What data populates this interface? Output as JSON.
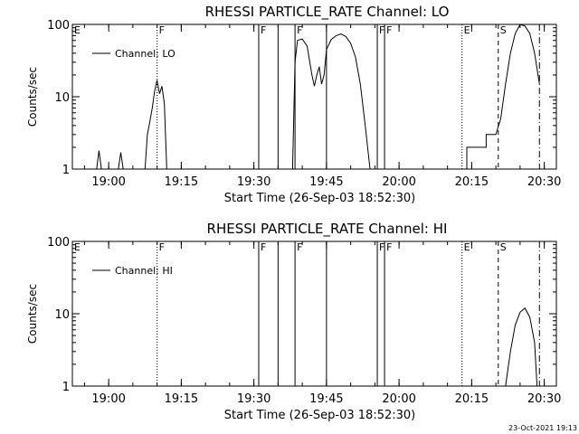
{
  "footer": {
    "timestamp": "23-Oct-2021 19:13"
  },
  "chart_data": [
    {
      "type": "line",
      "title": "RHESSI PARTICLE_RATE Channel: LO",
      "xlabel": "Start Time (26-Sep-03 18:52:30)",
      "ylabel": "Counts/sec",
      "y_scale": "log",
      "ylim": [
        1,
        100
      ],
      "xlim": [
        "18:52:30",
        "20:32:30"
      ],
      "x_ticks": [
        "19:00",
        "19:15",
        "19:30",
        "19:45",
        "20:00",
        "20:15",
        "20:30"
      ],
      "y_ticks": [
        "1",
        "10",
        "100"
      ],
      "legend": {
        "label": "Channel: LO",
        "placement": "top-left"
      },
      "markers": [
        {
          "time": "18:52:30",
          "label": "E",
          "style": "dotted"
        },
        {
          "time": "19:10:00",
          "label": "F",
          "style": "dotted"
        },
        {
          "time": "19:31:00",
          "label": "F",
          "style": "solid"
        },
        {
          "time": "19:35:00",
          "label": "",
          "style": "solid"
        },
        {
          "time": "19:38:30",
          "label": "F",
          "style": "solid"
        },
        {
          "time": "19:45:00",
          "label": "",
          "style": "solid"
        },
        {
          "time": "19:55:30",
          "label": "F",
          "style": "solid"
        },
        {
          "time": "19:57:00",
          "label": "F",
          "style": "solid"
        },
        {
          "time": "20:13:00",
          "label": "E",
          "style": "dotted"
        },
        {
          "time": "20:20:30",
          "label": "S",
          "style": "dashed"
        },
        {
          "time": "20:29:00",
          "label": "",
          "style": "dashdot"
        }
      ],
      "series": [
        {
          "name": "Channel: LO",
          "segments": [
            {
              "x": [
                "18:57:30",
                "18:58:00",
                "18:58:30"
              ],
              "y": [
                1,
                1.8,
                1
              ]
            },
            {
              "x": [
                "19:02:00",
                "19:02:30",
                "19:03:00"
              ],
              "y": [
                1,
                1.7,
                1
              ]
            },
            {
              "x": [
                "19:07:30",
                "19:08:00",
                "19:08:30",
                "19:09:00",
                "19:09:30",
                "19:10:00",
                "19:10:30",
                "19:11:00",
                "19:11:30",
                "19:12:00"
              ],
              "y": [
                1,
                3,
                4.5,
                7,
                12,
                17,
                11,
                14,
                8,
                1
              ]
            },
            {
              "x": [
                "19:38:00",
                "19:38:30",
                "19:39:00",
                "19:40:00",
                "19:41:00",
                "19:42:00",
                "19:42:30",
                "19:43:00",
                "19:43:30",
                "19:44:00",
                "19:44:30",
                "19:45:00",
                "19:46:00",
                "19:47:00",
                "19:48:00",
                "19:49:00",
                "19:50:00",
                "19:51:00",
                "19:52:00",
                "19:53:00",
                "19:54:00"
              ],
              "y": [
                1,
                30,
                60,
                63,
                50,
                20,
                14,
                20,
                26,
                15,
                20,
                45,
                62,
                70,
                74,
                68,
                55,
                35,
                15,
                4,
                1
              ]
            },
            {
              "x": [
                "20:13:00",
                "20:14:00",
                "20:14:00",
                "20:18:00",
                "20:18:00",
                "20:20:00",
                "20:21:00",
                "20:22:00",
                "20:23:00",
                "20:24:00",
                "20:25:00",
                "20:26:00",
                "20:27:00",
                "20:28:00",
                "20:29:00"
              ],
              "y": [
                1,
                1,
                2,
                2,
                3,
                3,
                5,
                15,
                40,
                75,
                100,
                95,
                75,
                40,
                15
              ]
            }
          ]
        }
      ]
    },
    {
      "type": "line",
      "title": "RHESSI PARTICLE_RATE Channel: HI",
      "xlabel": "Start Time (26-Sep-03 18:52:30)",
      "ylabel": "Counts/sec",
      "y_scale": "log",
      "ylim": [
        1,
        100
      ],
      "xlim": [
        "18:52:30",
        "20:32:30"
      ],
      "x_ticks": [
        "19:00",
        "19:15",
        "19:30",
        "19:45",
        "20:00",
        "20:15",
        "20:30"
      ],
      "y_ticks": [
        "1",
        "10",
        "100"
      ],
      "legend": {
        "label": "Channel: HI",
        "placement": "top-left"
      },
      "markers": [
        {
          "time": "18:52:30",
          "label": "E",
          "style": "dotted"
        },
        {
          "time": "19:10:00",
          "label": "F",
          "style": "dotted"
        },
        {
          "time": "19:31:00",
          "label": "F",
          "style": "solid"
        },
        {
          "time": "19:35:00",
          "label": "",
          "style": "solid"
        },
        {
          "time": "19:38:30",
          "label": "F",
          "style": "solid"
        },
        {
          "time": "19:45:00",
          "label": "",
          "style": "solid"
        },
        {
          "time": "19:55:30",
          "label": "F",
          "style": "solid"
        },
        {
          "time": "19:57:00",
          "label": "F",
          "style": "solid"
        },
        {
          "time": "20:13:00",
          "label": "E",
          "style": "dotted"
        },
        {
          "time": "20:20:30",
          "label": "S",
          "style": "dashed"
        },
        {
          "time": "20:29:00",
          "label": "",
          "style": "dashdot"
        }
      ],
      "series": [
        {
          "name": "Channel: HI",
          "segments": [
            {
              "x": [
                "20:22:00",
                "20:23:00",
                "20:24:00",
                "20:25:00",
                "20:26:00",
                "20:27:00",
                "20:28:00",
                "20:28:30"
              ],
              "y": [
                1,
                3,
                7,
                10.5,
                12,
                9,
                4,
                1
              ]
            }
          ]
        }
      ]
    }
  ]
}
